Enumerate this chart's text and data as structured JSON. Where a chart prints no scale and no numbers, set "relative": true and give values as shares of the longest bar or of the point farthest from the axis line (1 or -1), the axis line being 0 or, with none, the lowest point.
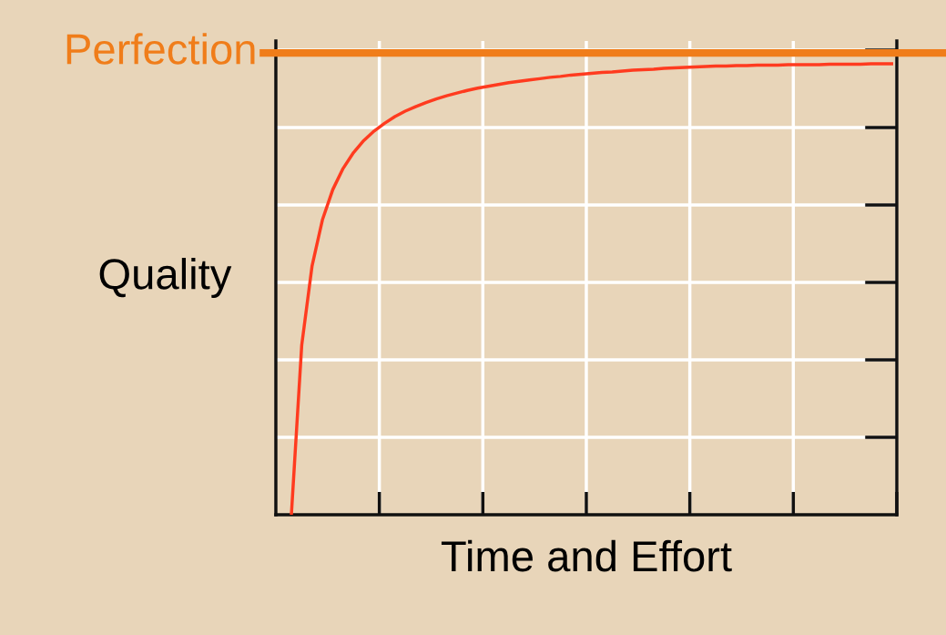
{
  "chart_data": {
    "type": "line",
    "xlabel": "Time and Effort",
    "ylabel": "Quality",
    "relative": true,
    "grid": true,
    "tick_labels": false,
    "categories": [
      null,
      null,
      null,
      null,
      null,
      null,
      null,
      null,
      null,
      null,
      null,
      null,
      null,
      null,
      null,
      null,
      null,
      null,
      null,
      null,
      null,
      null,
      null,
      null,
      null,
      null,
      null,
      null,
      null,
      null,
      null,
      null,
      null,
      null,
      null,
      null,
      null,
      null,
      null,
      null,
      null,
      null,
      null,
      null,
      null,
      null,
      null,
      null,
      null,
      null,
      null,
      null,
      null,
      null,
      null,
      null,
      null,
      null,
      null
    ],
    "series": [
      {
        "color": "#ff3b1f",
        "values": [
          0,
          0.376,
          0.552,
          0.654,
          0.721,
          0.768,
          0.803,
          0.83,
          0.851,
          0.868,
          0.883,
          0.895,
          0.905,
          0.914,
          0.922,
          0.929,
          0.935,
          0.941,
          0.946,
          0.95,
          0.954,
          0.958,
          0.961,
          0.964,
          0.967,
          0.97,
          0.972,
          0.975,
          0.977,
          0.979,
          0.981,
          0.982,
          0.984,
          0.986,
          0.987,
          0.988,
          0.99,
          0.991,
          0.992,
          0.993,
          0.994,
          0.995,
          0.995,
          0.996,
          0.996,
          0.997,
          0.997,
          0.997,
          0.998,
          0.998,
          0.998,
          0.998,
          0.999,
          0.999,
          0.999,
          0.999,
          1,
          1,
          1
        ]
      }
    ],
    "ref_lines": [
      {
        "axis": "y",
        "value": 1.024,
        "label": "Perfection",
        "color": "#f07d1a"
      }
    ]
  }
}
